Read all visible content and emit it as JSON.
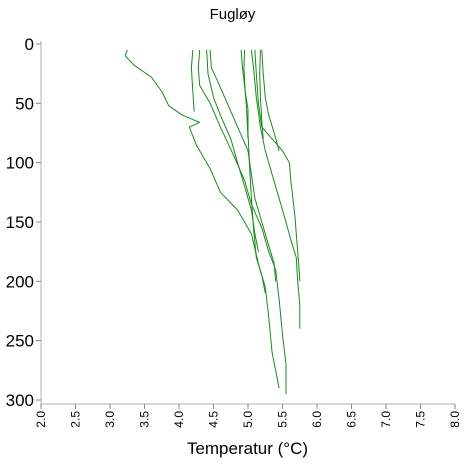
{
  "chart_data": {
    "type": "line",
    "title": "Fugløy",
    "xlabel": "Temperatur (°C)",
    "ylabel": "",
    "xlim": [
      2.0,
      8.0
    ],
    "ylim": [
      300,
      0
    ],
    "y_inverted": true,
    "x_ticks": [
      "2.0",
      "2.5",
      "3.0",
      "3.5",
      "4.0",
      "4.5",
      "5.0",
      "5.5",
      "6.0",
      "6.5",
      "7.0",
      "7.5",
      "8.0"
    ],
    "y_ticks": [
      "0",
      "50",
      "100",
      "150",
      "200",
      "250",
      "300"
    ],
    "line_color": "#1a8a1a",
    "series": [
      {
        "values": [
          [
            3.25,
            5
          ],
          [
            3.22,
            10
          ],
          [
            3.35,
            18
          ],
          [
            3.6,
            28
          ],
          [
            3.75,
            40
          ],
          [
            3.85,
            52
          ],
          [
            4.05,
            60
          ],
          [
            4.3,
            66
          ],
          [
            4.15,
            70
          ],
          [
            4.25,
            85
          ],
          [
            4.45,
            105
          ],
          [
            4.6,
            125
          ],
          [
            4.85,
            140
          ],
          [
            5.05,
            160
          ],
          [
            5.15,
            185
          ],
          [
            5.25,
            205
          ],
          [
            5.3,
            230
          ],
          [
            5.35,
            260
          ],
          [
            5.45,
            290
          ]
        ]
      },
      {
        "values": [
          [
            4.2,
            5
          ],
          [
            4.18,
            20
          ],
          [
            4.2,
            40
          ],
          [
            4.22,
            57
          ]
        ]
      },
      {
        "values": [
          [
            4.3,
            5
          ],
          [
            4.28,
            20
          ],
          [
            4.3,
            35
          ],
          [
            4.45,
            50
          ],
          [
            4.6,
            70
          ],
          [
            4.8,
            95
          ],
          [
            4.95,
            115
          ],
          [
            5.05,
            135
          ],
          [
            5.2,
            155
          ],
          [
            5.3,
            175
          ],
          [
            5.4,
            190
          ],
          [
            5.45,
            215
          ],
          [
            5.5,
            245
          ],
          [
            5.55,
            270
          ],
          [
            5.55,
            295
          ]
        ]
      },
      {
        "values": [
          [
            4.45,
            5
          ],
          [
            4.47,
            20
          ],
          [
            4.55,
            30
          ],
          [
            4.7,
            50
          ],
          [
            4.85,
            70
          ],
          [
            5.0,
            90
          ],
          [
            5.05,
            110
          ],
          [
            5.1,
            130
          ],
          [
            5.2,
            150
          ],
          [
            5.3,
            170
          ],
          [
            5.38,
            185
          ],
          [
            5.4,
            200
          ]
        ]
      },
      {
        "values": [
          [
            4.4,
            5
          ],
          [
            4.42,
            25
          ],
          [
            4.5,
            45
          ],
          [
            4.6,
            60
          ],
          [
            4.75,
            80
          ],
          [
            4.85,
            100
          ],
          [
            4.95,
            120
          ],
          [
            5.05,
            140
          ],
          [
            5.1,
            160
          ],
          [
            5.15,
            175
          ]
        ]
      },
      {
        "values": [
          [
            4.9,
            5
          ],
          [
            4.92,
            20
          ],
          [
            4.96,
            40
          ],
          [
            5.0,
            55
          ],
          [
            5.0,
            75
          ],
          [
            5.02,
            100
          ],
          [
            5.05,
            130
          ],
          [
            5.08,
            155
          ],
          [
            5.12,
            180
          ],
          [
            5.2,
            195
          ],
          [
            5.25,
            210
          ]
        ]
      },
      {
        "values": [
          [
            4.95,
            5
          ],
          [
            4.94,
            20
          ],
          [
            4.96,
            40
          ],
          [
            4.98,
            55
          ],
          [
            5.0,
            80
          ]
        ]
      },
      {
        "values": [
          [
            5.05,
            5
          ],
          [
            5.08,
            20
          ],
          [
            5.12,
            45
          ],
          [
            5.18,
            70
          ],
          [
            5.25,
            90
          ],
          [
            5.35,
            110
          ],
          [
            5.45,
            130
          ],
          [
            5.55,
            150
          ],
          [
            5.62,
            165
          ],
          [
            5.7,
            180
          ],
          [
            5.72,
            200
          ],
          [
            5.75,
            220
          ],
          [
            5.75,
            240
          ]
        ]
      },
      {
        "values": [
          [
            5.1,
            5
          ],
          [
            5.12,
            25
          ],
          [
            5.15,
            50
          ],
          [
            5.2,
            70
          ],
          [
            5.35,
            80
          ],
          [
            5.5,
            90
          ],
          [
            5.6,
            100
          ],
          [
            5.62,
            115
          ],
          [
            5.65,
            130
          ],
          [
            5.68,
            145
          ],
          [
            5.7,
            160
          ],
          [
            5.72,
            175
          ],
          [
            5.74,
            190
          ],
          [
            5.75,
            200
          ]
        ]
      },
      {
        "values": [
          [
            5.2,
            5
          ],
          [
            5.22,
            25
          ],
          [
            5.25,
            45
          ],
          [
            5.3,
            60
          ],
          [
            5.38,
            75
          ],
          [
            5.45,
            90
          ]
        ]
      },
      {
        "values": [
          [
            5.18,
            5
          ],
          [
            5.17,
            25
          ],
          [
            5.18,
            45
          ],
          [
            5.2,
            65
          ],
          [
            5.22,
            80
          ]
        ]
      }
    ]
  }
}
